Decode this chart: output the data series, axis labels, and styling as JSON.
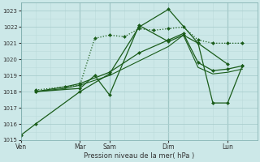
{
  "xlabel": "Pression niveau de la mer( hPa )",
  "ylim": [
    1015,
    1023.5
  ],
  "yticks": [
    1015,
    1016,
    1017,
    1018,
    1019,
    1020,
    1021,
    1022,
    1023
  ],
  "bg_color": "#cce8e8",
  "grid_major_color": "#aacece",
  "grid_minor_color": "#bbdada",
  "line_color": "#1a5c1a",
  "xtick_positions": [
    0,
    12,
    18,
    30,
    42
  ],
  "xtick_labels": [
    "Ven",
    "Mar",
    "Sam",
    "Dim",
    "Lun"
  ],
  "xmin": 0,
  "xmax": 48,
  "vline_positions": [
    0,
    12,
    18,
    30,
    42
  ],
  "lines": [
    {
      "x": [
        0,
        3,
        12,
        18,
        24,
        30,
        36,
        42
      ],
      "y": [
        1015.3,
        1016.0,
        1018.0,
        1019.1,
        1022.0,
        1023.1,
        1021.0,
        1019.7
      ],
      "style": "-",
      "marker": "D",
      "markersize": 2.0,
      "linewidth": 0.9
    },
    {
      "x": [
        3,
        12,
        15,
        18,
        24,
        30,
        33,
        36,
        39,
        42,
        45
      ],
      "y": [
        1018.0,
        1018.2,
        1019.0,
        1017.8,
        1022.1,
        1021.1,
        1021.5,
        1021.0,
        1017.3,
        1017.3,
        1019.6
      ],
      "style": "-",
      "marker": "D",
      "markersize": 2.0,
      "linewidth": 0.9
    },
    {
      "x": [
        3,
        12,
        15,
        18,
        21,
        24,
        27,
        30,
        33,
        36,
        39,
        42,
        45
      ],
      "y": [
        1018.1,
        1018.4,
        1021.3,
        1021.5,
        1021.4,
        1021.9,
        1021.8,
        1021.9,
        1022.0,
        1021.2,
        1021.0,
        1021.0,
        1021.0
      ],
      "style": ":",
      "marker": "D",
      "markersize": 2.0,
      "linewidth": 0.9
    },
    {
      "x": [
        3,
        9,
        12,
        18,
        24,
        30,
        33,
        36,
        39,
        42,
        45
      ],
      "y": [
        1018.0,
        1018.3,
        1018.5,
        1019.2,
        1020.4,
        1021.2,
        1021.6,
        1019.8,
        1019.3,
        1019.4,
        1019.6
      ],
      "style": "-",
      "marker": "D",
      "markersize": 2.0,
      "linewidth": 0.9
    },
    {
      "x": [
        3,
        9,
        12,
        18,
        24,
        30,
        33,
        36,
        39,
        42,
        45
      ],
      "y": [
        1018.0,
        1018.2,
        1018.4,
        1019.0,
        1019.9,
        1020.8,
        1021.5,
        1019.5,
        1019.1,
        1019.2,
        1019.4
      ],
      "style": "-",
      "marker": null,
      "markersize": 0,
      "linewidth": 0.8
    }
  ]
}
